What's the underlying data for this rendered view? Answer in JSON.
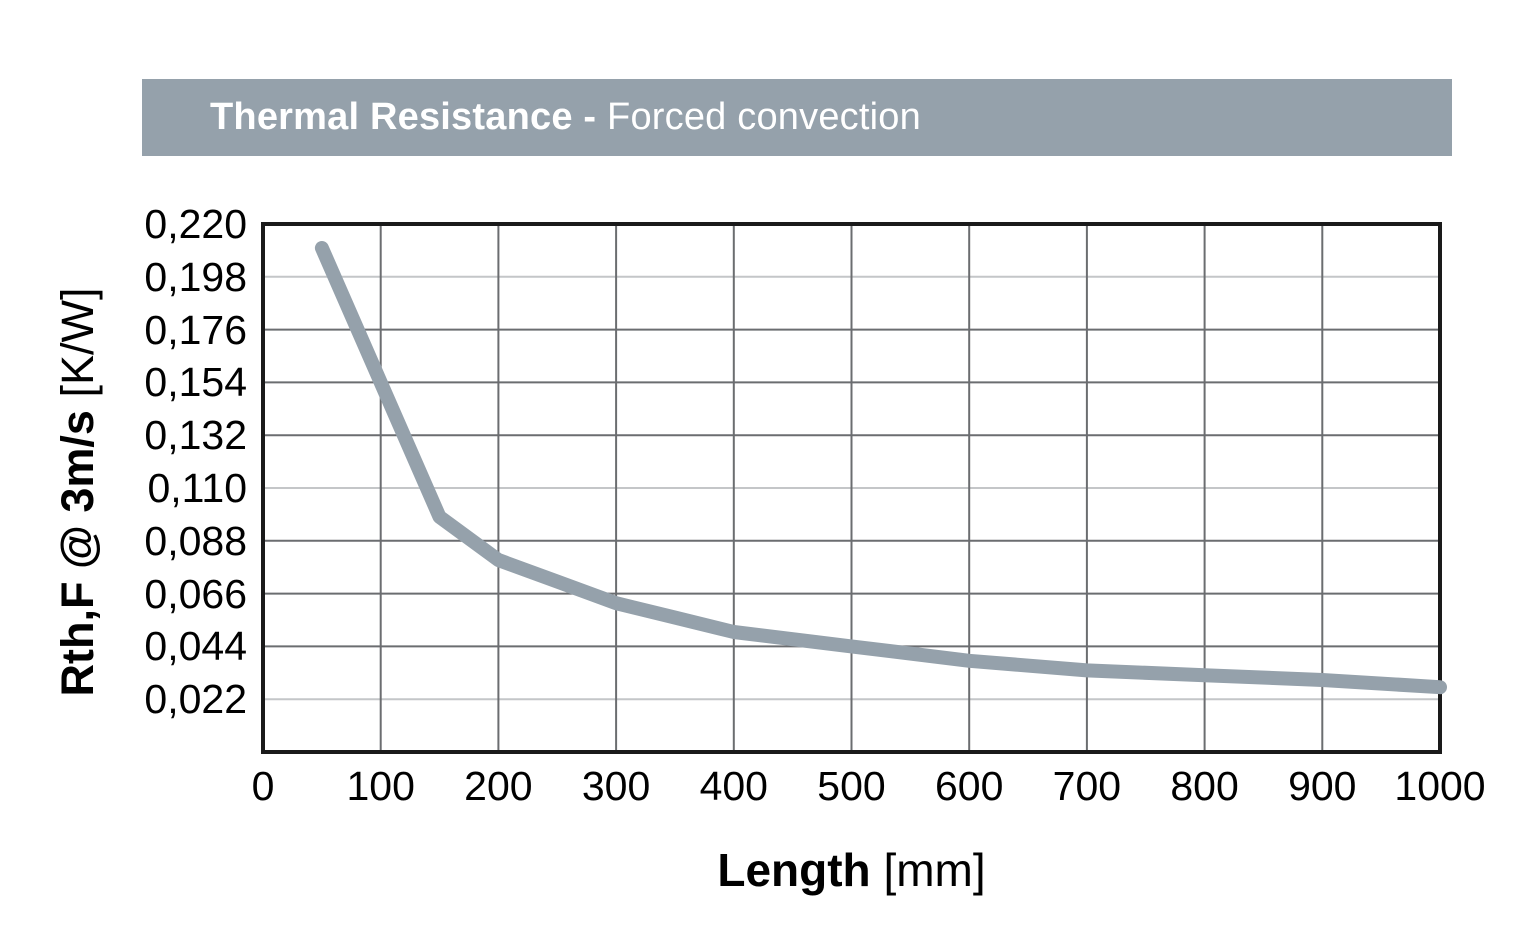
{
  "title": {
    "bold": "Thermal Resistance -",
    "regular": "Forced convection"
  },
  "colors": {
    "title_bar_bg": "#95a1ab",
    "title_text": "#ffffff",
    "curve": "#95a1ab",
    "grid_dark": "#6b6d70",
    "grid_light": "#c4c6c8",
    "frame": "#1a1a1a",
    "text": "#000000"
  },
  "chart_data": {
    "type": "line",
    "title": "Thermal Resistance - Forced convection",
    "xlabel": "Length [mm]",
    "ylabel": "Rth,F @ 3m/s [K/W]",
    "grid": true,
    "legend": "none",
    "x_axis": {
      "label_bold": "Length",
      "label_unit": "[mm]",
      "ticks": [
        "0",
        "100",
        "200",
        "300",
        "400",
        "500",
        "600",
        "700",
        "800",
        "900",
        "1000"
      ],
      "range": [
        0,
        1000
      ]
    },
    "y_axis": {
      "label_bold": "Rth,F @ 3m/s",
      "label_unit": "[K/W]",
      "ticks": [
        "0,220",
        "0,198",
        "0,176",
        "0,154",
        "0,132",
        "0,110",
        "0,088",
        "0,066",
        "0,044",
        "0,022"
      ],
      "range": [
        0,
        0.22
      ],
      "light_gridline_ticks": [
        "0,198",
        "0,110",
        "0,022"
      ]
    },
    "series": [
      {
        "x_mm": [
          50,
          100,
          150,
          200,
          250,
          300,
          350,
          400,
          500,
          600,
          700,
          800,
          900,
          1000
        ],
        "y_kw": [
          0.21,
          0.154,
          0.098,
          0.08,
          0.071,
          0.062,
          0.056,
          0.05,
          0.044,
          0.038,
          0.034,
          0.032,
          0.03,
          0.027
        ]
      }
    ]
  }
}
